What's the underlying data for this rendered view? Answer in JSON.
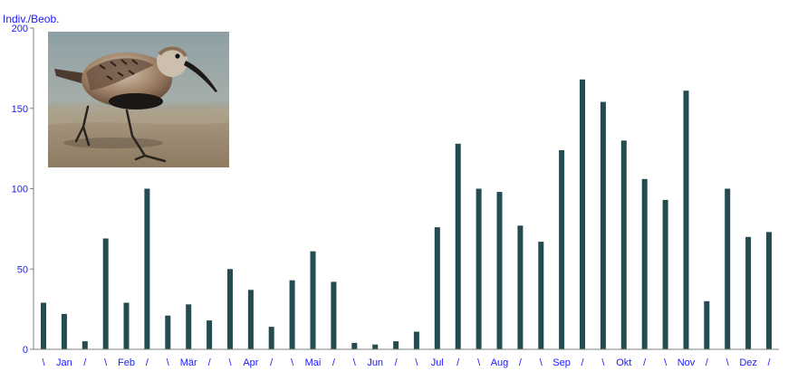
{
  "chart_data": {
    "type": "bar",
    "ylabel": "Indiv./Beob.",
    "ylim": [
      0,
      200
    ],
    "yticks": [
      0,
      50,
      100,
      150,
      200
    ],
    "grid": false,
    "bar_color": "#234b50",
    "axis_color": "#808080",
    "label_color": "#1a1aff",
    "categories": [
      "\\",
      "Jan",
      "/",
      "\\",
      "Feb",
      "/",
      "\\",
      "Mär",
      "/",
      "\\",
      "Apr",
      "/",
      "\\",
      "Mai",
      "/",
      "\\",
      "Jun",
      "/",
      "\\",
      "Jul",
      "/",
      "\\",
      "Aug",
      "/",
      "\\",
      "Sep",
      "/",
      "\\",
      "Okt",
      "/",
      "\\",
      "Nov",
      "/",
      "\\",
      "Dez",
      "/"
    ],
    "values": [
      29,
      22,
      5,
      69,
      29,
      100,
      21,
      28,
      18,
      50,
      37,
      14,
      43,
      61,
      42,
      4,
      3,
      5,
      11,
      76,
      128,
      100,
      98,
      77,
      67,
      124,
      168,
      154,
      130,
      106,
      93,
      161,
      30,
      100,
      70,
      73
    ]
  },
  "photo": {
    "subject": "dunlin-sandpiper-photo"
  }
}
